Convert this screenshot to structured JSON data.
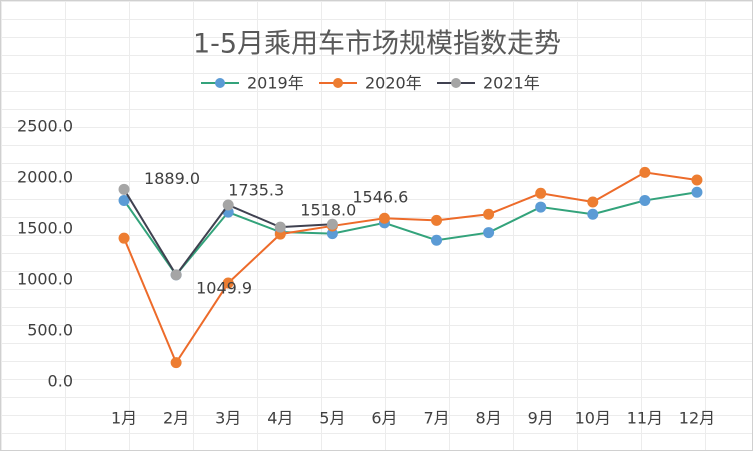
{
  "chart_data": {
    "type": "line",
    "title": "1-5月乘用车市场规模指数走势",
    "categories": [
      "1月",
      "2月",
      "3月",
      "4月",
      "5月",
      "6月",
      "7月",
      "8月",
      "9月",
      "10月",
      "11月",
      "12月"
    ],
    "series": [
      {
        "name": "2019年",
        "color": "#33a37b",
        "marker_color": "#5b9bd5",
        "values": [
          1780,
          1050,
          1665,
          1470,
          1455,
          1560,
          1390,
          1465,
          1715,
          1645,
          1780,
          1860
        ]
      },
      {
        "name": "2020年",
        "color": "#ed6b2a",
        "marker_color": "#ed7d31",
        "values": [
          1410,
          190,
          970,
          1450,
          1530,
          1605,
          1585,
          1645,
          1850,
          1765,
          2055,
          1980
        ]
      },
      {
        "name": "2021年",
        "color": "#3f4150",
        "marker_color": "#a5a5a5",
        "values": [
          1889.0,
          1049.9,
          1735.3,
          1518.0,
          1546.6,
          null,
          null,
          null,
          null,
          null,
          null,
          null
        ],
        "value_labels": [
          "1889.0",
          "1049.9",
          "1735.3",
          "1518.0",
          "1546.6",
          null,
          null,
          null,
          null,
          null,
          null,
          null
        ]
      }
    ],
    "ylim": [
      0,
      2500
    ],
    "yticks": [
      {
        "value": 0,
        "label": "0.0"
      },
      {
        "value": 500,
        "label": "500.0"
      },
      {
        "value": 1000,
        "label": "1000.0"
      },
      {
        "value": 1500,
        "label": "1500.0"
      },
      {
        "value": 2000,
        "label": "2000.0"
      },
      {
        "value": 2500,
        "label": "2500.0"
      }
    ],
    "legend": "top"
  }
}
